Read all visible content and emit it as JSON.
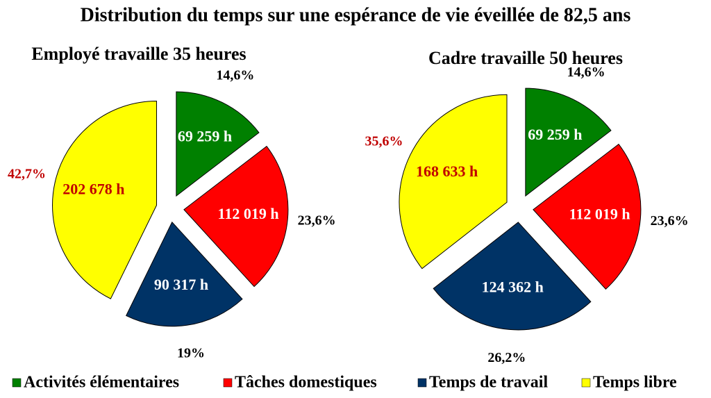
{
  "title": "Distribution du temps sur une espérance de vie éveillée de 82,5 ans",
  "legend": {
    "labels": [
      "Activités élémentaires",
      "Tâches domestiques",
      "Temps de travail",
      "Temps libre"
    ],
    "colors": [
      "#008000",
      "#ff0000",
      "#003366",
      "#ffff00"
    ]
  },
  "chart_data": [
    {
      "type": "pie",
      "title": "Employé travaille 35 heures",
      "values": [
        69259,
        112019,
        90317,
        202678
      ],
      "value_labels": [
        "69 259 h",
        "112 019 h",
        "90 317 h",
        "202 678 h"
      ],
      "percentages": [
        14.6,
        23.6,
        19,
        42.7
      ],
      "percentage_labels": [
        "14,6%",
        "23,6%",
        "19%",
        "42,7%"
      ]
    },
    {
      "type": "pie",
      "title": "Cadre travaille 50 heures",
      "values": [
        69259,
        112019,
        124362,
        168633
      ],
      "value_labels": [
        "69 259 h",
        "112 019 h",
        "124 362 h",
        "168 633 h"
      ],
      "percentages": [
        14.6,
        23.6,
        26.2,
        35.6
      ],
      "percentage_labels": [
        "14,6%",
        "23,6%",
        "26,2%",
        "35,6%"
      ]
    }
  ]
}
